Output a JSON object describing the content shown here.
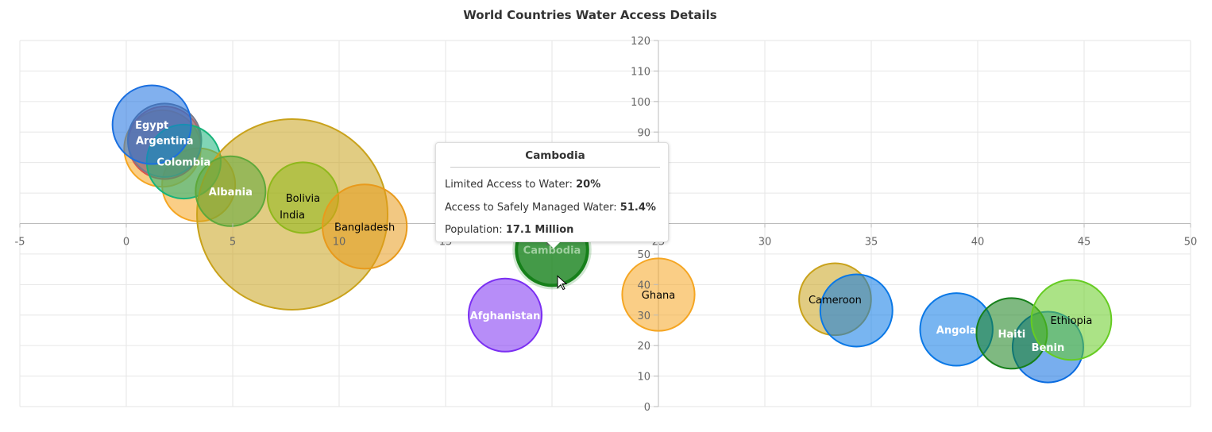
{
  "chart_data": {
    "type": "bubble",
    "title": "World Countries Water Access Details",
    "xlabel": "Limited Access to Water",
    "ylabel": "Access to Safely Managed Water",
    "xlim": [
      -5,
      50
    ],
    "ylim": [
      0,
      120
    ],
    "x_interval": 5,
    "y_interval": 10,
    "grid": true,
    "x_ticks": [
      "-5",
      "0",
      "5",
      "10",
      "15",
      "20",
      "25",
      "30",
      "35",
      "40",
      "45",
      "50"
    ],
    "y_ticks": [
      "0",
      "10",
      "20",
      "30",
      "40",
      "50",
      "60",
      "70",
      "80",
      "90",
      "100",
      "110",
      "120"
    ],
    "points": [
      {
        "label": "",
        "x": 3.4,
        "y": 72.7,
        "size": 40,
        "color": "#f5a623",
        "text": "#fff"
      },
      {
        "label": "",
        "x": 1.7,
        "y": 84.6,
        "size": 80,
        "color": "#f5a623",
        "text": "#fff"
      },
      {
        "label": "",
        "x": 1.8,
        "y": 86.5,
        "size": 35,
        "color": "#d9534f",
        "text": "#fff"
      },
      {
        "label": "Argentina",
        "x": 1.8,
        "y": 87.3,
        "size": 45,
        "color": "#7a7a8a",
        "text": "#fff"
      },
      {
        "label": "Colombia",
        "x": 2.7,
        "y": 80.3,
        "size": 51,
        "color": "#17b37a",
        "text": "#fff"
      },
      {
        "label": "Egypt",
        "x": 1.2,
        "y": 92.4,
        "size": 104,
        "color": "#1a6fe0",
        "text": "#fff"
      },
      {
        "label": "India",
        "x": 7.8,
        "y": 63.0,
        "size": 1400,
        "color": "#c9a21b",
        "text": "#000"
      },
      {
        "label": "Albania",
        "x": 4.9,
        "y": 70.6,
        "size": 2.8,
        "color": "#5ea83a",
        "text": "#fff"
      },
      {
        "label": "Bolivia",
        "x": 8.3,
        "y": 68.5,
        "size": 12,
        "color": "#8fb81c",
        "text": "#000"
      },
      {
        "label": "Bangladesh",
        "x": 11.2,
        "y": 59.0,
        "size": 170,
        "color": "#e89a1c",
        "text": "#000"
      },
      {
        "label": "Afghanistan",
        "x": 17.8,
        "y": 30.0,
        "size": 40,
        "color": "#7b2ff2",
        "text": "#fff"
      },
      {
        "label": "Ghana",
        "x": 25.0,
        "y": 36.7,
        "size": 32,
        "color": "#f5a623",
        "text": "#000"
      },
      {
        "label": "Cameroon",
        "x": 33.3,
        "y": 35.2,
        "size": 27,
        "color": "#c9a21b",
        "text": "#000"
      },
      {
        "label": "",
        "x": 34.3,
        "y": 31.5,
        "size": 30,
        "color": "#0a78e6",
        "text": "#fff"
      },
      {
        "label": "Angola",
        "x": 39.0,
        "y": 25.3,
        "size": 34,
        "color": "#0a78e6",
        "text": "#fff"
      },
      {
        "label": "Benin",
        "x": 43.3,
        "y": 19.5,
        "size": 12.5,
        "color": "#0a6ce0",
        "text": "#fff"
      },
      {
        "label": "Haiti",
        "x": 41.6,
        "y": 24.0,
        "size": 11.5,
        "color": "#16801a",
        "text": "#fff"
      },
      {
        "label": "Ethiopia",
        "x": 44.4,
        "y": 28.4,
        "size": 120,
        "color": "#66cc22",
        "text": "#000"
      },
      {
        "label": "Cambodia",
        "x": 20.0,
        "y": 51.4,
        "size": 17.1,
        "color": "#16801a",
        "text": "#fff",
        "hovered": true
      }
    ]
  },
  "tooltip": {
    "title": "Cambodia",
    "rows": [
      {
        "label": "Limited Access to Water: ",
        "value": "20%"
      },
      {
        "label": "Access to Safely Managed Water: ",
        "value": "51.4%"
      },
      {
        "label": "Population: ",
        "value": "17.1 Million"
      }
    ]
  }
}
